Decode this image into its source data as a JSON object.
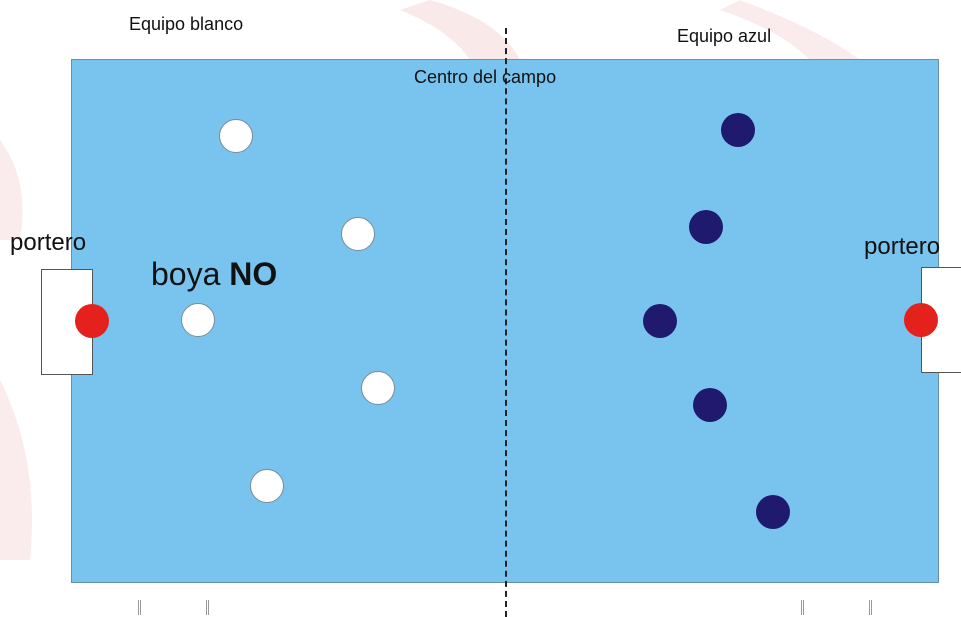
{
  "labels": {
    "team_white": "Equipo blanco",
    "team_blue": "Equipo azul",
    "center": "Centro del campo",
    "goalkeeper_left": "portero",
    "goalkeeper_right": "portero",
    "buoy_prefix": "boya ",
    "buoy_emphasis": "NO"
  },
  "colors": {
    "field": "#78c4ee",
    "white_team": "#ffffff",
    "blue_team": "#1f1a6e",
    "goalkeeper": "#e4211c"
  }
}
